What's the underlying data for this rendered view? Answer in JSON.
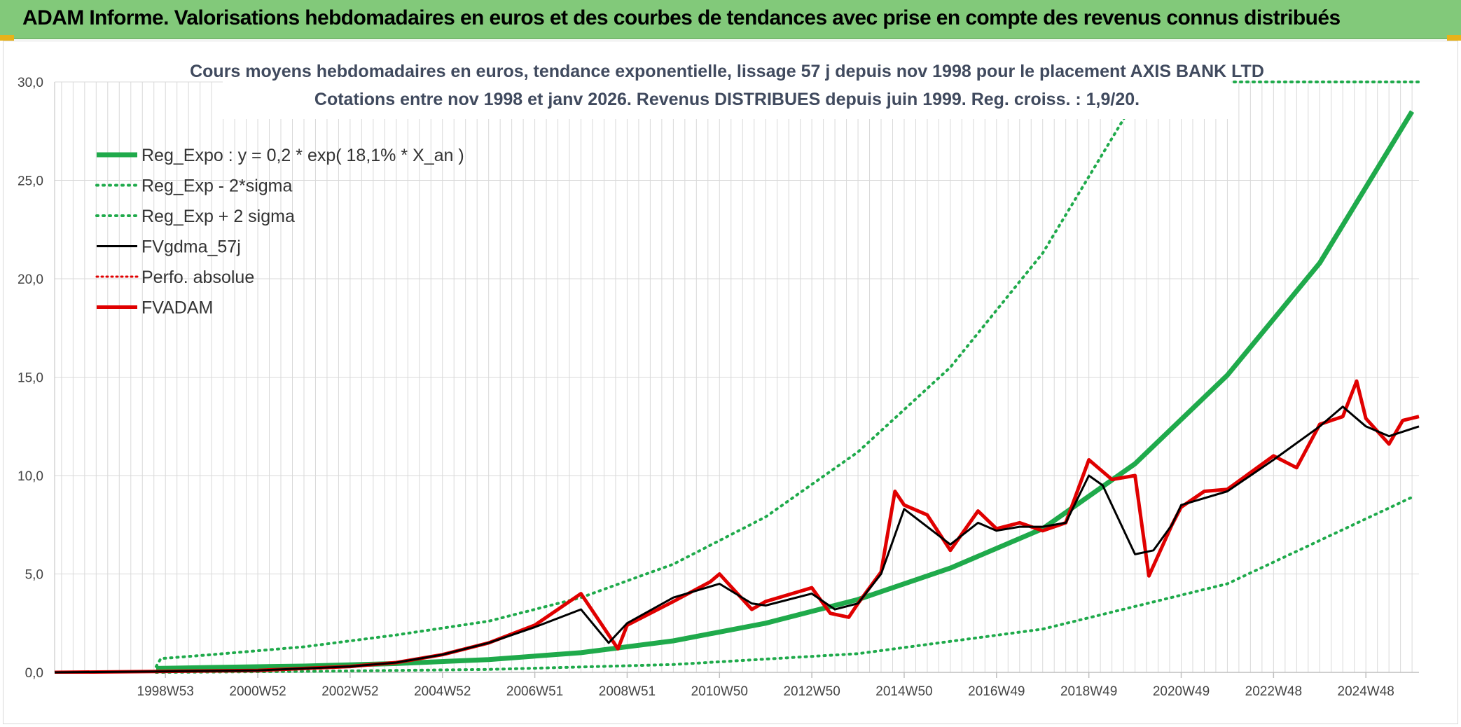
{
  "header": {
    "title": "ADAM Informe. Valorisations hebdomadaires en euros et des courbes de tendances avec prise en compte des revenus connus distribués"
  },
  "chart_data": {
    "type": "line",
    "title_lines": [
      "Cours moyens hebdomadaires en euros, tendance exponentielle, lissage 57 j depuis nov 1998 pour le placement AXIS BANK LTD",
      "Cotations entre nov 1998 et janv 2026. Revenus DISTRIBUES depuis juin 1999. Reg. croiss. : 1,9/20."
    ],
    "xlim": [
      1996.6,
      2026.15
    ],
    "ylim": [
      0,
      30
    ],
    "y_ticks": [
      0,
      5,
      10,
      15,
      20,
      25,
      30
    ],
    "y_tick_labels": [
      "0,0",
      "5,0",
      "10,0",
      "15,0",
      "20,0",
      "25,0",
      "30,0"
    ],
    "x_ticks": [
      {
        "x": 1999.0,
        "label": "1998W53"
      },
      {
        "x": 2001.0,
        "label": "2000W52"
      },
      {
        "x": 2003.0,
        "label": "2002W52"
      },
      {
        "x": 2005.0,
        "label": "2004W52"
      },
      {
        "x": 2007.0,
        "label": "2006W51"
      },
      {
        "x": 2009.0,
        "label": "2008W51"
      },
      {
        "x": 2011.0,
        "label": "2010W50"
      },
      {
        "x": 2013.0,
        "label": "2012W50"
      },
      {
        "x": 2015.0,
        "label": "2014W50"
      },
      {
        "x": 2017.0,
        "label": "2016W49"
      },
      {
        "x": 2019.0,
        "label": "2018W49"
      },
      {
        "x": 2021.0,
        "label": "2020W49"
      },
      {
        "x": 2023.0,
        "label": "2022W48"
      },
      {
        "x": 2025.0,
        "label": "2024W48"
      }
    ],
    "grid": true,
    "legend_position": "top-left",
    "colors": {
      "green": "#1faa4b",
      "black": "#000000",
      "red": "#e00000",
      "grid": "#d9d9d9",
      "axis": "#bfbfbf"
    },
    "series": [
      {
        "name": "Reg_Expo : y = 0,2 * exp( 18,1% *  X_an )",
        "style": "solid",
        "color": "#1faa4b",
        "width": 7,
        "x": [
          1998.8,
          2000,
          2002,
          2004,
          2006,
          2008,
          2010,
          2012,
          2014,
          2016,
          2018,
          2020,
          2022,
          2024,
          2026
        ],
        "y": [
          0.2,
          0.25,
          0.32,
          0.45,
          0.65,
          1.0,
          1.6,
          2.5,
          3.7,
          5.3,
          7.3,
          10.6,
          15.1,
          20.8,
          28.5
        ]
      },
      {
        "name": "Reg_Exp - 2*sigma",
        "style": "dotted",
        "color": "#1faa4b",
        "width": 4,
        "x": [
          1998.8,
          2002,
          2006,
          2010,
          2014,
          2018,
          2022,
          2026
        ],
        "y": [
          0.0,
          0.05,
          0.15,
          0.4,
          0.95,
          2.2,
          4.5,
          8.9
        ]
      },
      {
        "name": "Reg_Exp + 2 sigma",
        "style": "dotted",
        "color": "#1faa4b",
        "width": 4,
        "x": [
          1998.8,
          1998.9,
          2000,
          2002,
          2004,
          2006,
          2008,
          2010,
          2012,
          2014,
          2016,
          2018,
          2019.8
        ],
        "y": [
          0.3,
          0.7,
          0.9,
          1.3,
          1.9,
          2.6,
          3.8,
          5.5,
          7.9,
          11.2,
          15.5,
          21.3,
          28.3
        ]
      },
      {
        "name": "FVgdma_57j",
        "style": "solid",
        "color": "#000000",
        "width": 3,
        "x": [
          1996.6,
          1999,
          2001,
          2003,
          2004,
          2005,
          2006,
          2007,
          2008,
          2008.6,
          2009,
          2010,
          2011,
          2011.7,
          2012,
          2013,
          2013.5,
          2014,
          2014.5,
          2015,
          2016,
          2016.6,
          2017,
          2017.5,
          2018,
          2018.5,
          2019,
          2019.3,
          2020,
          2020.4,
          2020.8,
          2021,
          2022,
          2023,
          2024,
          2024.5,
          2025,
          2025.5,
          2026.15
        ],
        "y": [
          0,
          0.05,
          0.1,
          0.3,
          0.5,
          0.9,
          1.5,
          2.3,
          3.2,
          1.5,
          2.5,
          3.8,
          4.5,
          3.5,
          3.4,
          4.0,
          3.2,
          3.5,
          5.0,
          8.3,
          6.5,
          7.6,
          7.2,
          7.4,
          7.4,
          7.6,
          10.0,
          9.5,
          6.0,
          6.2,
          7.5,
          8.5,
          9.2,
          10.8,
          12.5,
          13.5,
          12.5,
          12.0,
          12.5
        ]
      },
      {
        "name": "Perfo. absolue",
        "style": "dotted",
        "color": "#e00000",
        "width": 3,
        "x": [],
        "y": []
      },
      {
        "name": "FVADAM",
        "style": "solid",
        "color": "#e00000",
        "width": 5,
        "x": [
          1996.6,
          1999,
          2001,
          2003,
          2004,
          2005,
          2006,
          2007,
          2007.5,
          2008,
          2008.8,
          2009,
          2010,
          2010.8,
          2011,
          2011.7,
          2012,
          2013,
          2013.4,
          2013.8,
          2014,
          2014.5,
          2014.8,
          2015,
          2015.5,
          2016,
          2016.6,
          2017,
          2017.5,
          2018,
          2018.5,
          2019,
          2019.5,
          2020,
          2020.3,
          2020.8,
          2021,
          2021.5,
          2022,
          2023,
          2023.5,
          2024,
          2024.5,
          2024.8,
          2025,
          2025.5,
          2025.8,
          2026.15
        ],
        "y": [
          0,
          0.05,
          0.1,
          0.3,
          0.5,
          0.9,
          1.5,
          2.4,
          3.2,
          4.0,
          1.2,
          2.4,
          3.6,
          4.6,
          5.0,
          3.2,
          3.6,
          4.3,
          3.0,
          2.8,
          3.5,
          5.1,
          9.2,
          8.5,
          8.0,
          6.2,
          8.2,
          7.3,
          7.6,
          7.2,
          7.6,
          10.8,
          9.8,
          10.0,
          4.9,
          7.5,
          8.4,
          9.2,
          9.3,
          11.0,
          10.4,
          12.6,
          13.0,
          14.8,
          12.9,
          11.6,
          12.8,
          13.0
        ]
      }
    ]
  }
}
